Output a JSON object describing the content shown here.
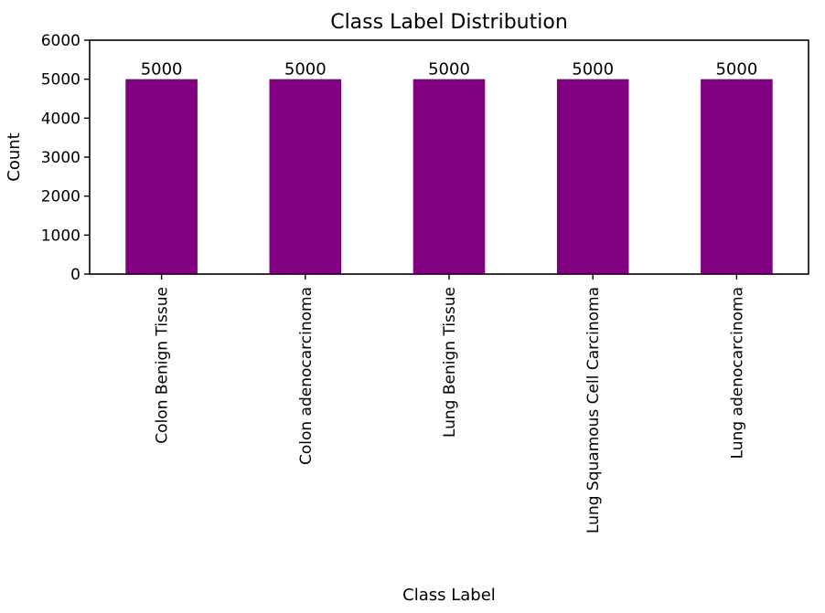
{
  "chart_data": {
    "type": "bar",
    "title": "Class Label Distribution",
    "xlabel": "Class Label",
    "ylabel": "Count",
    "categories": [
      "Colon Benign Tissue",
      "Colon adenocarcinoma",
      "Lung Benign Tissue",
      "Lung Squamous Cell Carcinoma",
      "Lung adenocarcinoma"
    ],
    "values": [
      5000,
      5000,
      5000,
      5000,
      5000
    ],
    "data_labels": [
      "5000",
      "5000",
      "5000",
      "5000",
      "5000"
    ],
    "ylim": [
      0,
      6000
    ],
    "yticks": [
      0,
      1000,
      2000,
      3000,
      4000,
      5000,
      6000
    ],
    "grid": false,
    "legend": "none",
    "bar_color": "#800080"
  }
}
